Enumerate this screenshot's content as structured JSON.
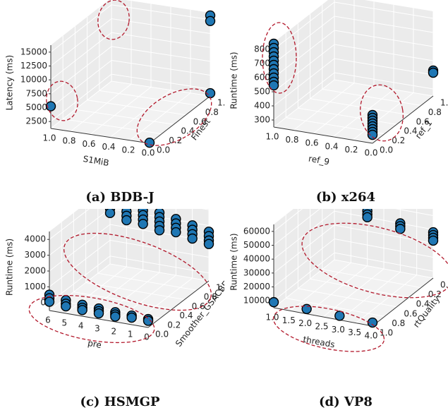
{
  "chart_data": [
    {
      "type": "scatter",
      "projection": "3d",
      "caption": "(a) BDB-J",
      "xlabel": "S1MiB",
      "ylabel": "Finest",
      "zlabel": "Latency (ms)",
      "x_ticks": [
        "1.0",
        "0.8",
        "0.6",
        "0.4",
        "0.2",
        "0.0"
      ],
      "y_ticks": [
        "0.0",
        "0.2",
        "0.4",
        "0.6",
        "0.8",
        "1.0"
      ],
      "z_ticks": [
        "2500",
        "5000",
        "7500",
        "10000",
        "12500",
        "15000"
      ],
      "xlim": [
        0,
        1
      ],
      "ylim": [
        0,
        1
      ],
      "zlim": [
        2500,
        17500
      ],
      "x_reversed": true,
      "points": [
        {
          "x": 0,
          "y": 1,
          "z": 17000
        },
        {
          "x": 0,
          "y": 1,
          "z": 16000
        },
        {
          "x": 1,
          "y": 0,
          "z": 6500
        },
        {
          "x": 0,
          "y": 1,
          "z": 3000
        },
        {
          "x": 0,
          "y": 0,
          "z": 2600
        }
      ],
      "clusters": [
        {
          "note": "x=0, y=1, high latency"
        },
        {
          "note": "x=1, y=0"
        },
        {
          "note": "x=0, y in {0,1}, low latency"
        }
      ]
    },
    {
      "type": "scatter",
      "projection": "3d",
      "caption": "(b) x264",
      "xlabel": "ref_9",
      "ylabel": "ref_1",
      "zlabel": "Runtime (ms)",
      "x_ticks": [
        "1.0",
        "0.8",
        "0.6",
        "0.4",
        "0.2",
        "0.0"
      ],
      "y_ticks": [
        "0.0",
        "0.2",
        "0.4",
        "0.6",
        "0.8",
        "1.0"
      ],
      "z_ticks": [
        "300",
        "400",
        "500",
        "600",
        "700",
        "800"
      ],
      "xlim": [
        0,
        1
      ],
      "ylim": [
        0,
        1
      ],
      "zlim": [
        250,
        850
      ],
      "x_reversed": true,
      "points": [
        {
          "x": 1,
          "y": 0,
          "z": 840
        },
        {
          "x": 1,
          "y": 0,
          "z": 810
        },
        {
          "x": 1,
          "y": 0,
          "z": 780
        },
        {
          "x": 1,
          "y": 0,
          "z": 750
        },
        {
          "x": 1,
          "y": 0,
          "z": 720
        },
        {
          "x": 1,
          "y": 0,
          "z": 690
        },
        {
          "x": 1,
          "y": 0,
          "z": 660
        },
        {
          "x": 1,
          "y": 0,
          "z": 630
        },
        {
          "x": 1,
          "y": 0,
          "z": 600
        },
        {
          "x": 1,
          "y": 0,
          "z": 570
        },
        {
          "x": 1,
          "y": 0,
          "z": 545
        },
        {
          "x": 0,
          "y": 0,
          "z": 450
        },
        {
          "x": 0,
          "y": 0,
          "z": 430
        },
        {
          "x": 0,
          "y": 0,
          "z": 410
        },
        {
          "x": 0,
          "y": 0,
          "z": 390
        },
        {
          "x": 0,
          "y": 0,
          "z": 370
        },
        {
          "x": 0,
          "y": 0,
          "z": 350
        },
        {
          "x": 0,
          "y": 0,
          "z": 330
        },
        {
          "x": 0,
          "y": 0,
          "z": 310
        },
        {
          "x": 0,
          "y": 1,
          "z": 430
        },
        {
          "x": 0,
          "y": 1,
          "z": 415
        }
      ]
    },
    {
      "type": "scatter",
      "projection": "3d",
      "caption": "(c) HSMGP",
      "xlabel": "pre",
      "ylabel": "Smoother_GSACBE",
      "zlabel": "Runtime (ms)",
      "x_ticks": [
        "6",
        "5",
        "4",
        "3",
        "2",
        "1",
        "0"
      ],
      "y_ticks": [
        "0.0",
        "0.2",
        "0.4",
        "0.6",
        "0.8",
        "1.0"
      ],
      "z_ticks": [
        "0",
        "1000",
        "2000",
        "3000",
        "4000"
      ],
      "xlim": [
        0,
        6
      ],
      "ylim": [
        0,
        1
      ],
      "zlim": [
        0,
        4500
      ],
      "x_reversed": true,
      "points": [
        {
          "x": 6,
          "y": 0,
          "z": 900
        },
        {
          "x": 6,
          "y": 0,
          "z": 700
        },
        {
          "x": 6,
          "y": 0,
          "z": 500
        },
        {
          "x": 5,
          "y": 0,
          "z": 750
        },
        {
          "x": 5,
          "y": 0,
          "z": 550
        },
        {
          "x": 5,
          "y": 0,
          "z": 400
        },
        {
          "x": 4,
          "y": 0,
          "z": 650
        },
        {
          "x": 4,
          "y": 0,
          "z": 480
        },
        {
          "x": 4,
          "y": 0,
          "z": 350
        },
        {
          "x": 3,
          "y": 0,
          "z": 600
        },
        {
          "x": 3,
          "y": 0,
          "z": 450
        },
        {
          "x": 3,
          "y": 0,
          "z": 320
        },
        {
          "x": 2,
          "y": 0,
          "z": 550
        },
        {
          "x": 2,
          "y": 0,
          "z": 420
        },
        {
          "x": 2,
          "y": 0,
          "z": 300
        },
        {
          "x": 1,
          "y": 0,
          "z": 520
        },
        {
          "x": 1,
          "y": 0,
          "z": 400
        },
        {
          "x": 0,
          "y": 0,
          "z": 480
        },
        {
          "x": 0,
          "y": 0,
          "z": 380
        },
        {
          "x": 6,
          "y": 1,
          "z": 4400
        },
        {
          "x": 6,
          "y": 1,
          "z": 4150
        },
        {
          "x": 6,
          "y": 1,
          "z": 3900
        },
        {
          "x": 6,
          "y": 1,
          "z": 3650
        },
        {
          "x": 6,
          "y": 1,
          "z": 3400
        },
        {
          "x": 6,
          "y": 1,
          "z": 3150
        },
        {
          "x": 6,
          "y": 1,
          "z": 2900
        },
        {
          "x": 5,
          "y": 1,
          "z": 3900
        },
        {
          "x": 5,
          "y": 1,
          "z": 3650
        },
        {
          "x": 5,
          "y": 1,
          "z": 3400
        },
        {
          "x": 5,
          "y": 1,
          "z": 3150
        },
        {
          "x": 5,
          "y": 1,
          "z": 2900
        },
        {
          "x": 5,
          "y": 1,
          "z": 2650
        },
        {
          "x": 4,
          "y": 1,
          "z": 3600
        },
        {
          "x": 4,
          "y": 1,
          "z": 3350
        },
        {
          "x": 4,
          "y": 1,
          "z": 3100
        },
        {
          "x": 4,
          "y": 1,
          "z": 2850
        },
        {
          "x": 4,
          "y": 1,
          "z": 2600
        },
        {
          "x": 3,
          "y": 1,
          "z": 3400
        },
        {
          "x": 3,
          "y": 1,
          "z": 3150
        },
        {
          "x": 3,
          "y": 1,
          "z": 2900
        },
        {
          "x": 3,
          "y": 1,
          "z": 2650
        },
        {
          "x": 3,
          "y": 1,
          "z": 2400
        },
        {
          "x": 2,
          "y": 1,
          "z": 3200
        },
        {
          "x": 2,
          "y": 1,
          "z": 2950
        },
        {
          "x": 2,
          "y": 1,
          "z": 2700
        },
        {
          "x": 2,
          "y": 1,
          "z": 2450
        },
        {
          "x": 1,
          "y": 1,
          "z": 3000
        },
        {
          "x": 1,
          "y": 1,
          "z": 2750
        },
        {
          "x": 1,
          "y": 1,
          "z": 2500
        },
        {
          "x": 1,
          "y": 1,
          "z": 2250
        },
        {
          "x": 0,
          "y": 1,
          "z": 2800
        },
        {
          "x": 0,
          "y": 1,
          "z": 2550
        },
        {
          "x": 0,
          "y": 1,
          "z": 2300
        },
        {
          "x": 0,
          "y": 1,
          "z": 2100
        }
      ]
    },
    {
      "type": "scatter",
      "projection": "3d",
      "caption": "(d) VP8",
      "xlabel": "threads",
      "ylabel": "rtQuality",
      "zlabel": "Runtime (ms)",
      "x_ticks": [
        "1.0",
        "1.5",
        "2.0",
        "2.5",
        "3.0",
        "3.5",
        "4.0"
      ],
      "y_ticks": [
        "1.0",
        "0.8",
        "0.6",
        "0.4",
        "0.2",
        "0.0"
      ],
      "z_ticks": [
        "10000",
        "20000",
        "30000",
        "40000",
        "50000",
        "60000"
      ],
      "xlim": [
        1,
        4
      ],
      "ylim": [
        0,
        1
      ],
      "zlim": [
        5000,
        65000
      ],
      "y_reversed": true,
      "points": [
        {
          "x": 1,
          "y": 1,
          "z": 9000
        },
        {
          "x": 2,
          "y": 1,
          "z": 8500
        },
        {
          "x": 3,
          "y": 1,
          "z": 8000
        },
        {
          "x": 4,
          "y": 1,
          "z": 7500
        },
        {
          "x": 1,
          "y": 0,
          "z": 65000
        },
        {
          "x": 1,
          "y": 0,
          "z": 62000
        },
        {
          "x": 1,
          "y": 0,
          "z": 59000
        },
        {
          "x": 1,
          "y": 0,
          "z": 56000
        },
        {
          "x": 2,
          "y": 0,
          "z": 47000
        },
        {
          "x": 2,
          "y": 0,
          "z": 44500
        },
        {
          "x": 2,
          "y": 0,
          "z": 42000
        },
        {
          "x": 2,
          "y": 0,
          "z": 40000
        },
        {
          "x": 3,
          "y": 0,
          "z": 40000
        },
        {
          "x": 3,
          "y": 0,
          "z": 38000
        },
        {
          "x": 3,
          "y": 0,
          "z": 36000
        },
        {
          "x": 4,
          "y": 0,
          "z": 38000
        },
        {
          "x": 4,
          "y": 0,
          "z": 36000
        },
        {
          "x": 4,
          "y": 0,
          "z": 34000
        },
        {
          "x": 4,
          "y": 0,
          "z": 32000
        }
      ]
    }
  ],
  "colors": {
    "marker_fill": "#1f77b4",
    "marker_edge": "#000000",
    "cluster_ellipse": "#b2182b",
    "pane_back": "#ebebeb",
    "pane_side": "#f2f2f2",
    "grid": "#ffffff"
  }
}
